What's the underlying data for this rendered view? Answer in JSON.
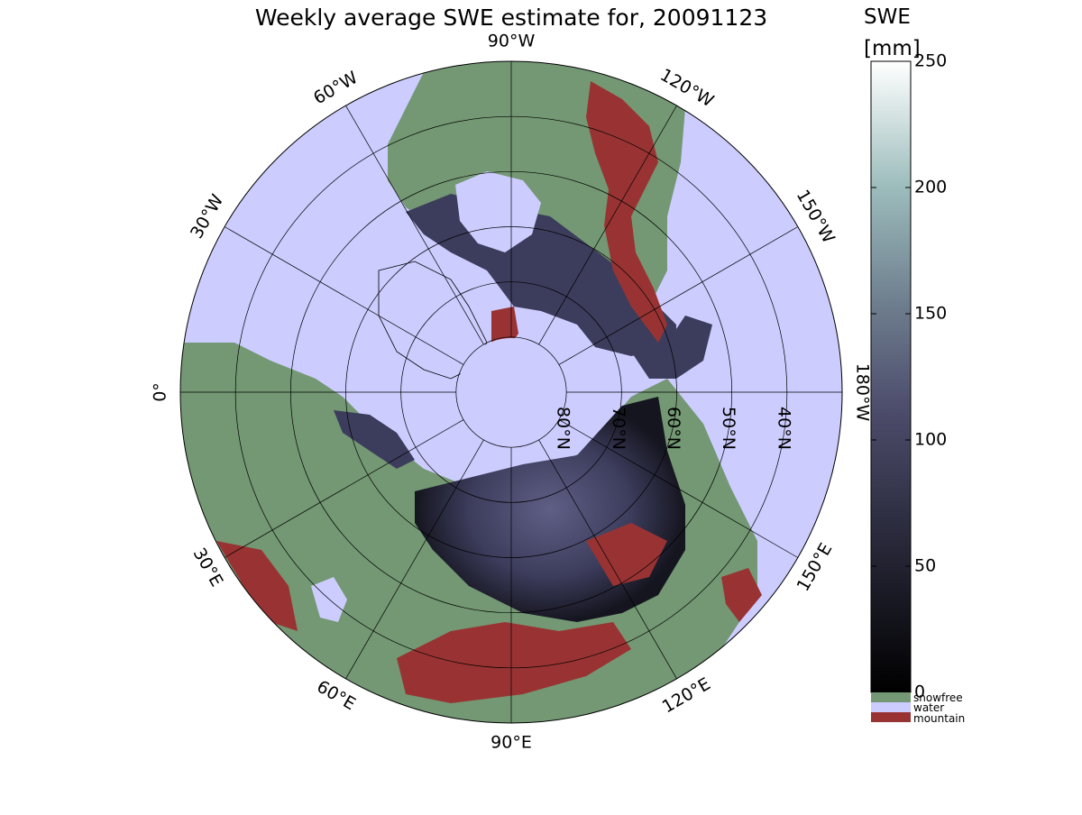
{
  "title": "Weekly average SWE estimate for, 20091123",
  "projection": "north polar stereographic",
  "map": {
    "colors": {
      "water": "#ccccff",
      "snowfree": "#739873",
      "mountain": "#993333",
      "snow_low": "#101018",
      "snow_mid": "#3c3c5c",
      "snow_high": "#5f5f86",
      "gridline": "#000000"
    },
    "longitude_labels": [
      {
        "lon": 90,
        "text": "90°W"
      },
      {
        "lon": 60,
        "text": "60°W"
      },
      {
        "lon": 30,
        "text": "30°W"
      },
      {
        "lon": 0,
        "text": "0°"
      },
      {
        "lon": -30,
        "text": "30°E"
      },
      {
        "lon": -60,
        "text": "60°E"
      },
      {
        "lon": -90,
        "text": "90°E"
      },
      {
        "lon": -120,
        "text": "120°E"
      },
      {
        "lon": -150,
        "text": "150°E"
      },
      {
        "lon": 180,
        "text": "180°W"
      },
      {
        "lon": 150,
        "text": "150°W"
      },
      {
        "lon": 120,
        "text": "120°W"
      }
    ],
    "latitude_labels": [
      {
        "lat": 80,
        "text": "80°N"
      },
      {
        "lat": 70,
        "text": "70°N"
      },
      {
        "lat": 60,
        "text": "60°N"
      },
      {
        "lat": 50,
        "text": "50°N"
      },
      {
        "lat": 40,
        "text": "40°N"
      }
    ]
  },
  "colorbar": {
    "title_line1": "SWE",
    "title_line2": "[mm]",
    "ticks": [
      0,
      50,
      100,
      150,
      200,
      250
    ],
    "range": [
      0,
      250
    ],
    "legend": [
      {
        "label": "snowfree",
        "color": "#739873"
      },
      {
        "label": "water",
        "color": "#ccccff"
      },
      {
        "label": "mountain",
        "color": "#993333"
      }
    ]
  }
}
